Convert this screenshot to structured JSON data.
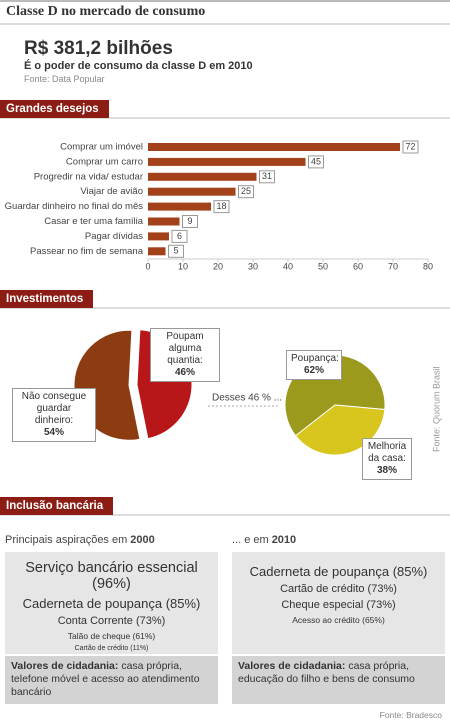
{
  "header": {
    "title": "Classe D no mercado de consumo",
    "headline": "R$ 381,2 bilhões",
    "subtitle": "É o poder de consumo da classe D em 2010",
    "source": "Fonte: Data Popular"
  },
  "sections": [
    "Grandes desejos",
    "Investimentos",
    "Inclusão bancária"
  ],
  "chart_data": [
    {
      "type": "hbar",
      "categories": [
        "Comprar um imóvel",
        "Comprar um carro",
        "Progredir na vida/ estudar",
        "Viajar de avião",
        "Guardar dinheiro no final do mês",
        "Casar e ter uma família",
        "Pagar dívidas",
        "Passear no fim de semana"
      ],
      "values": [
        72,
        45,
        31,
        25,
        18,
        9,
        6,
        5
      ],
      "color": "#a3421a",
      "xlim": [
        0,
        80
      ],
      "xticks": [
        0,
        10,
        20,
        30,
        40,
        50,
        60,
        70,
        80
      ],
      "grid": false
    },
    {
      "type": "pie",
      "categories": [
        "Poupam alguma quantia:",
        "Não consegue guardar dinheiro:"
      ],
      "values": [
        46,
        54
      ],
      "value_labels": [
        "46%",
        "54%"
      ],
      "colors": [
        "#b8171a",
        "#8c3c10"
      ]
    },
    {
      "type": "pie",
      "categories": [
        "Poupança:",
        "Melhoria da casa:"
      ],
      "values": [
        62,
        38
      ],
      "value_labels": [
        "62%",
        "38%"
      ],
      "colors": [
        "#9c9a1c",
        "#d8c51e"
      ]
    }
  ],
  "connector": "Desses 46 % ...",
  "pie_source": "Fonte: Quorum Brasil",
  "banking": {
    "left": {
      "heading": "Principais aspirações em",
      "year": "2000",
      "items": [
        "Serviço bancário essencial (96%)",
        "Caderneta de poupança (85%)",
        "Conta Corrente (73%)",
        "Talão de cheque (61%)",
        "Cartão de crédito (11%)"
      ],
      "values_label": "Valores de cidadania:",
      "values_text": "casa própria, telefone móvel e acesso ao atendimento bancário"
    },
    "right": {
      "heading": "... e em",
      "year": "2010",
      "items": [
        "Caderneta de poupança (85%)",
        "Cartão de crédito (73%)",
        "Cheque especial (73%)",
        "Acesso ao crédito (65%)"
      ],
      "values_label": "Valores de cidadania:",
      "values_text": "casa própria, educação do filho e bens de consumo"
    },
    "source": "Fonte: Bradesco"
  }
}
